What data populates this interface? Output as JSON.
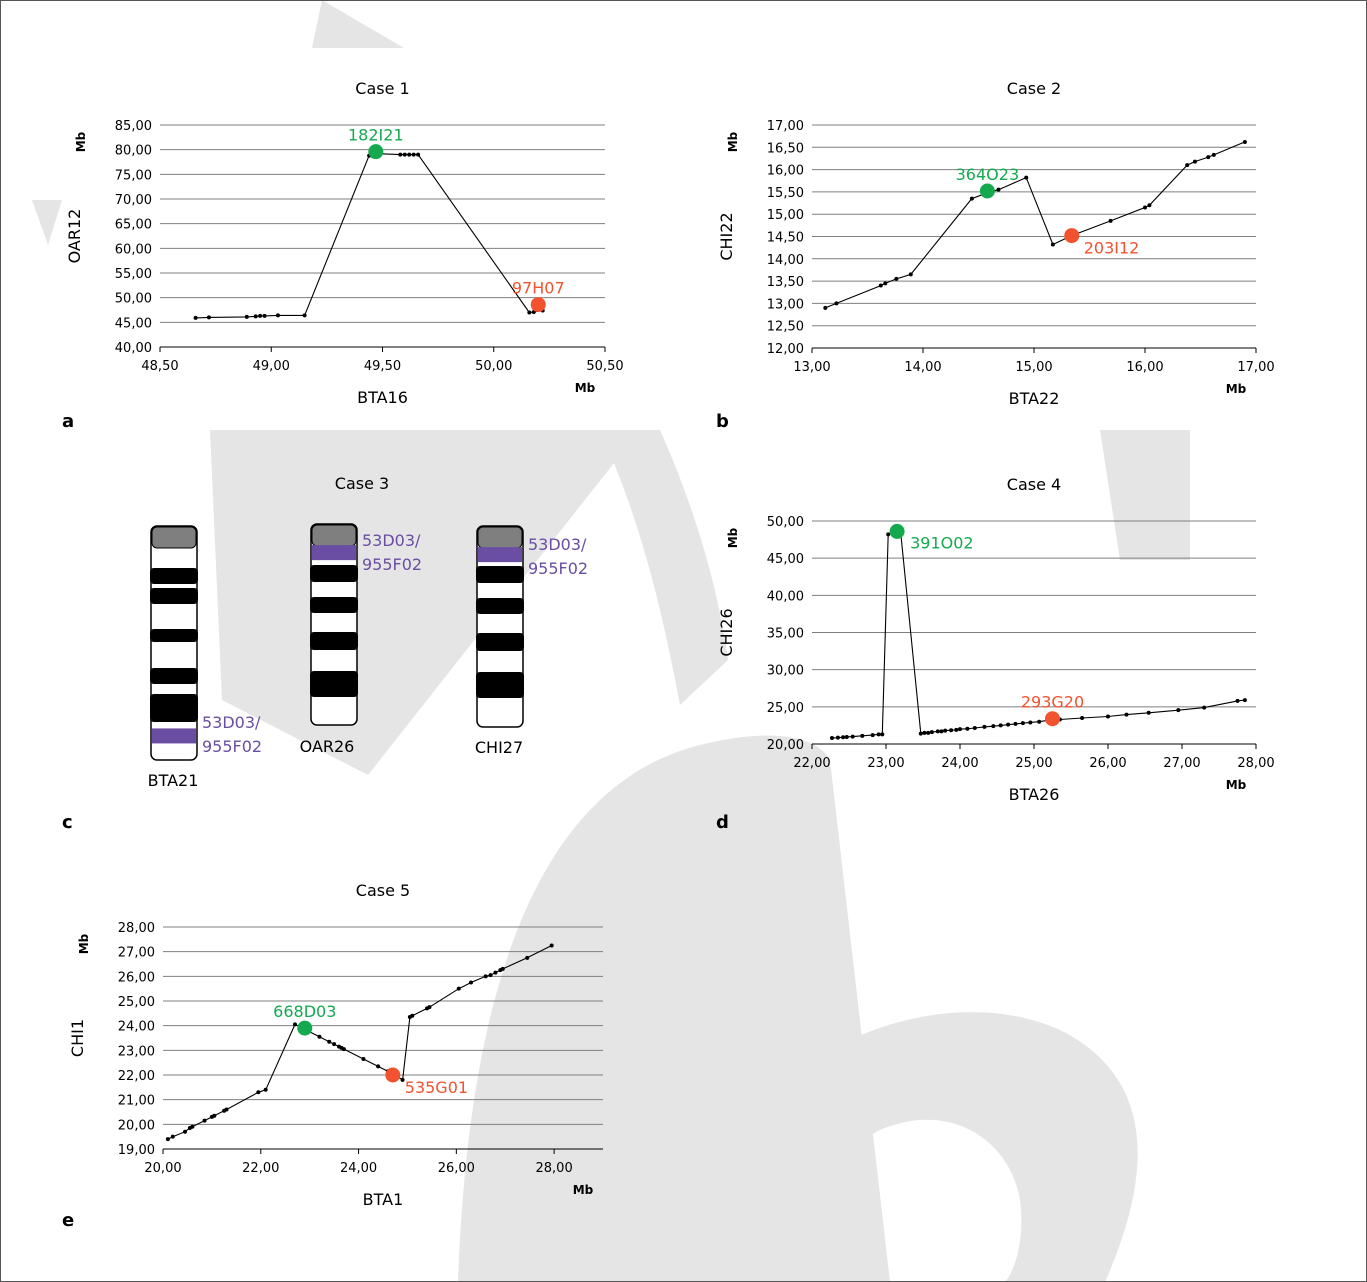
{
  "panel_letters": [
    "a",
    "b",
    "c",
    "d",
    "e"
  ],
  "colors": {
    "green": "#14a94f",
    "red": "#f2522e",
    "purple": "#6a4ea3",
    "watermark": "#e5e5e5",
    "grid": "#7f7f7f",
    "series": "#000000"
  },
  "chart_data": [
    {
      "id": "case1",
      "type": "line",
      "title": "Case 1",
      "xlabel": "BTA16",
      "ylabel": "OAR12",
      "x_unit": "Mb",
      "y_unit": "Mb",
      "xlim": [
        48.5,
        50.5
      ],
      "ylim": [
        40,
        85
      ],
      "xticks": [
        48.5,
        49.0,
        49.5,
        50.0,
        50.5
      ],
      "yticks": [
        40,
        45,
        50,
        55,
        60,
        65,
        70,
        75,
        80,
        85
      ],
      "xticklabels": [
        "48,50",
        "49,00",
        "49,50",
        "50,00",
        "50,50"
      ],
      "yticklabels": [
        "40,00",
        "45,00",
        "50,00",
        "55,00",
        "60,00",
        "65,00",
        "70,00",
        "75,00",
        "80,00",
        "85,00"
      ],
      "grid": "horizontal",
      "points": [
        [
          48.66,
          45.9
        ],
        [
          48.72,
          46.0
        ],
        [
          48.89,
          46.1
        ],
        [
          48.93,
          46.2
        ],
        [
          48.95,
          46.3
        ],
        [
          48.97,
          46.3
        ],
        [
          49.03,
          46.4
        ],
        [
          49.15,
          46.4
        ],
        [
          49.44,
          78.8
        ],
        [
          49.47,
          79.2
        ],
        [
          49.58,
          79.0
        ],
        [
          49.6,
          79.0
        ],
        [
          49.62,
          79.0
        ],
        [
          49.64,
          79.0
        ],
        [
          49.66,
          79.0
        ],
        [
          50.16,
          47.0
        ],
        [
          50.18,
          47.1
        ],
        [
          50.22,
          47.4
        ]
      ],
      "markers": [
        {
          "label": "182I21",
          "x": 49.47,
          "y": 79.6,
          "color": "green",
          "label_pos": "above"
        },
        {
          "label": "97H07",
          "x": 50.2,
          "y": 48.6,
          "color": "red",
          "label_pos": "above"
        }
      ]
    },
    {
      "id": "case2",
      "type": "line",
      "title": "Case 2",
      "xlabel": "BTA22",
      "ylabel": "CHI22",
      "x_unit": "Mb",
      "y_unit": "Mb",
      "xlim": [
        13,
        17
      ],
      "ylim": [
        12,
        17
      ],
      "xticks": [
        13,
        14,
        15,
        16,
        17
      ],
      "yticks": [
        12,
        12.5,
        13,
        13.5,
        14,
        14.5,
        15,
        15.5,
        16,
        16.5,
        17
      ],
      "xticklabels": [
        "13,00",
        "14,00",
        "15,00",
        "16,00",
        "17,00"
      ],
      "yticklabels": [
        "12,00",
        "12,50",
        "13,00",
        "13,50",
        "14,00",
        "14,50",
        "15,00",
        "15,50",
        "16,00",
        "16,50",
        "17,00"
      ],
      "grid": "horizontal",
      "points": [
        [
          13.12,
          12.9
        ],
        [
          13.22,
          13.0
        ],
        [
          13.62,
          13.4
        ],
        [
          13.66,
          13.45
        ],
        [
          13.76,
          13.55
        ],
        [
          13.89,
          13.65
        ],
        [
          14.44,
          15.35
        ],
        [
          14.58,
          15.48
        ],
        [
          14.68,
          15.55
        ],
        [
          14.93,
          15.82
        ],
        [
          15.17,
          14.32
        ],
        [
          15.34,
          14.52
        ],
        [
          15.69,
          14.85
        ],
        [
          16.0,
          15.15
        ],
        [
          16.04,
          15.2
        ],
        [
          16.38,
          16.1
        ],
        [
          16.45,
          16.18
        ],
        [
          16.57,
          16.28
        ],
        [
          16.62,
          16.33
        ],
        [
          16.9,
          16.62
        ]
      ],
      "markers": [
        {
          "label": "364O23",
          "x": 14.58,
          "y": 15.52,
          "color": "green",
          "label_pos": "above"
        },
        {
          "label": "203I12",
          "x": 15.34,
          "y": 14.52,
          "color": "red",
          "label_pos": "below-right"
        }
      ]
    },
    {
      "id": "case3",
      "type": "ideogram",
      "title": "Case 3",
      "chromosomes": [
        {
          "name": "BTA21",
          "probe_label_lines": [
            "53D03/",
            "955F02"
          ],
          "probe_pos": 0.895
        },
        {
          "name": "OAR26",
          "probe_label_lines": [
            "53D03/",
            "955F02"
          ],
          "probe_pos": 0.14
        },
        {
          "name": "CHI27",
          "probe_label_lines": [
            "53D03/",
            "955F02"
          ],
          "probe_pos": 0.14
        }
      ]
    },
    {
      "id": "case4",
      "type": "line",
      "title": "Case 4",
      "xlabel": "BTA26",
      "ylabel": "CHI26",
      "x_unit": "Mb",
      "y_unit": "Mb",
      "xlim": [
        22,
        28
      ],
      "ylim": [
        20,
        50
      ],
      "xticks": [
        22,
        23,
        24,
        25,
        26,
        27,
        28
      ],
      "yticks": [
        20,
        25,
        30,
        35,
        40,
        45,
        50
      ],
      "xticklabels": [
        "22,00",
        "23,00",
        "24,00",
        "25,00",
        "26,00",
        "27,00",
        "28,00"
      ],
      "yticklabels": [
        "20,00",
        "25,00",
        "30,00",
        "35,00",
        "40,00",
        "45,00",
        "50,00"
      ],
      "grid": "horizontal",
      "points": [
        [
          22.27,
          20.8
        ],
        [
          22.35,
          20.85
        ],
        [
          22.42,
          20.9
        ],
        [
          22.47,
          20.95
        ],
        [
          22.55,
          21.0
        ],
        [
          22.68,
          21.1
        ],
        [
          22.82,
          21.2
        ],
        [
          22.9,
          21.3
        ],
        [
          22.95,
          21.3
        ],
        [
          23.03,
          48.2
        ],
        [
          23.1,
          48.5
        ],
        [
          23.2,
          48.3
        ],
        [
          23.47,
          21.4
        ],
        [
          23.52,
          21.5
        ],
        [
          23.57,
          21.5
        ],
        [
          23.62,
          21.6
        ],
        [
          23.7,
          21.7
        ],
        [
          23.75,
          21.7
        ],
        [
          23.8,
          21.8
        ],
        [
          23.88,
          21.85
        ],
        [
          23.95,
          21.9
        ],
        [
          24.0,
          22.0
        ],
        [
          24.1,
          22.05
        ],
        [
          24.2,
          22.15
        ],
        [
          24.33,
          22.3
        ],
        [
          24.45,
          22.4
        ],
        [
          24.55,
          22.5
        ],
        [
          24.65,
          22.6
        ],
        [
          24.75,
          22.7
        ],
        [
          24.85,
          22.8
        ],
        [
          24.95,
          22.9
        ],
        [
          25.07,
          23.0
        ],
        [
          25.2,
          23.2
        ],
        [
          25.35,
          23.3
        ],
        [
          25.65,
          23.5
        ],
        [
          26.0,
          23.7
        ],
        [
          26.25,
          23.95
        ],
        [
          26.55,
          24.2
        ],
        [
          26.95,
          24.55
        ],
        [
          27.3,
          24.9
        ],
        [
          27.75,
          25.8
        ],
        [
          27.85,
          25.9
        ]
      ],
      "markers": [
        {
          "label": "391O02",
          "x": 23.15,
          "y": 48.6,
          "color": "green",
          "label_pos": "right"
        },
        {
          "label": "293G20",
          "x": 25.25,
          "y": 23.4,
          "color": "red",
          "label_pos": "above"
        }
      ]
    },
    {
      "id": "case5",
      "type": "line",
      "title": "Case 5",
      "xlabel": "BTA1",
      "ylabel": "CHI1",
      "x_unit": "Mb",
      "y_unit": "Mb",
      "xlim": [
        20,
        29
      ],
      "ylim": [
        19,
        28
      ],
      "xticks": [
        20,
        22,
        24,
        26,
        28
      ],
      "yticks": [
        19,
        20,
        21,
        22,
        23,
        24,
        25,
        26,
        27,
        28
      ],
      "xticklabels": [
        "20,00",
        "22,00",
        "24,00",
        "26,00",
        "28,00"
      ],
      "yticklabels": [
        "19,00",
        "20,00",
        "21,00",
        "22,00",
        "23,00",
        "24,00",
        "25,00",
        "26,00",
        "27,00",
        "28,00"
      ],
      "grid": "horizontal",
      "points": [
        [
          20.1,
          19.4
        ],
        [
          20.2,
          19.5
        ],
        [
          20.45,
          19.7
        ],
        [
          20.55,
          19.85
        ],
        [
          20.6,
          19.9
        ],
        [
          20.85,
          20.15
        ],
        [
          21.0,
          20.3
        ],
        [
          21.05,
          20.35
        ],
        [
          21.25,
          20.55
        ],
        [
          21.3,
          20.6
        ],
        [
          21.95,
          21.3
        ],
        [
          22.1,
          21.4
        ],
        [
          22.7,
          24.05
        ],
        [
          22.95,
          23.8
        ],
        [
          23.2,
          23.55
        ],
        [
          23.4,
          23.35
        ],
        [
          23.5,
          23.25
        ],
        [
          23.6,
          23.15
        ],
        [
          23.65,
          23.1
        ],
        [
          23.7,
          23.05
        ],
        [
          24.1,
          22.65
        ],
        [
          24.4,
          22.35
        ],
        [
          24.6,
          22.15
        ],
        [
          24.75,
          22.0
        ],
        [
          24.9,
          21.8
        ],
        [
          25.05,
          24.35
        ],
        [
          25.1,
          24.4
        ],
        [
          25.4,
          24.7
        ],
        [
          25.45,
          24.75
        ],
        [
          26.05,
          25.5
        ],
        [
          26.3,
          25.75
        ],
        [
          26.6,
          26.0
        ],
        [
          26.7,
          26.05
        ],
        [
          26.8,
          26.15
        ],
        [
          26.9,
          26.25
        ],
        [
          26.95,
          26.3
        ],
        [
          27.45,
          26.75
        ],
        [
          27.95,
          27.25
        ]
      ],
      "markers": [
        {
          "label": "668D03",
          "x": 22.9,
          "y": 23.9,
          "color": "green",
          "label_pos": "above"
        },
        {
          "label": "535G01",
          "x": 24.7,
          "y": 22.0,
          "color": "red",
          "label_pos": "below-right"
        }
      ]
    }
  ]
}
